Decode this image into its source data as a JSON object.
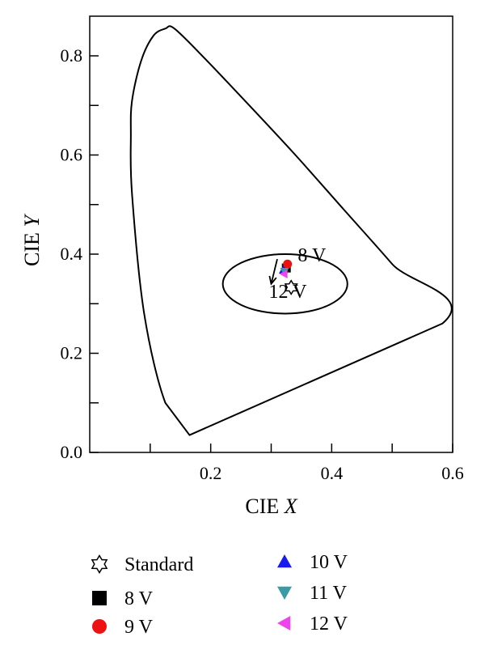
{
  "chart_data": {
    "type": "scatter",
    "title": "",
    "xlabel": "CIE X",
    "ylabel": "CIE Y",
    "xlim": [
      0.0,
      0.6
    ],
    "ylim": [
      0.0,
      0.88
    ],
    "x_ticks": [
      {
        "value": 0.2,
        "label": "0.2"
      },
      {
        "value": 0.4,
        "label": "0.4"
      },
      {
        "value": 0.6,
        "label": "0.6"
      }
    ],
    "y_ticks": [
      {
        "value": 0.0,
        "label": "0.0"
      },
      {
        "value": 0.2,
        "label": "0.2"
      },
      {
        "value": 0.4,
        "label": "0.4"
      },
      {
        "value": 0.6,
        "label": "0.6"
      },
      {
        "value": 0.8,
        "label": "0.8"
      }
    ],
    "x_minor_ticks": [
      0.1,
      0.3,
      0.5
    ],
    "y_minor_ticks": [
      0.1,
      0.3,
      0.5,
      0.7
    ],
    "grid": false,
    "legend_position": "bottom",
    "gamut_boundary": [
      [
        0.165,
        0.035
      ],
      [
        0.125,
        0.1
      ],
      [
        0.09,
        0.28
      ],
      [
        0.07,
        0.52
      ],
      [
        0.068,
        0.64
      ],
      [
        0.07,
        0.71
      ],
      [
        0.085,
        0.79
      ],
      [
        0.105,
        0.84
      ],
      [
        0.125,
        0.855
      ],
      [
        0.14,
        0.855
      ],
      [
        0.19,
        0.795
      ],
      [
        0.26,
        0.705
      ],
      [
        0.34,
        0.6
      ],
      [
        0.42,
        0.49
      ],
      [
        0.5,
        0.38
      ],
      [
        0.583,
        0.26
      ],
      [
        0.165,
        0.035
      ]
    ],
    "ellipse": {
      "center": [
        0.323,
        0.34
      ],
      "semi_axis_x": 0.103,
      "semi_axis_y": 0.06
    },
    "series": [
      {
        "name": "Standard",
        "marker": "star",
        "color": "#000000",
        "fill": "#ffffff",
        "x": [
          0.333
        ],
        "y": [
          0.333
        ]
      },
      {
        "name": "8 V",
        "marker": "square",
        "color": "#000000",
        "x": [
          0.325
        ],
        "y": [
          0.372
        ]
      },
      {
        "name": "9 V",
        "marker": "circle",
        "color": "#ee1111",
        "x": [
          0.327
        ],
        "y": [
          0.38
        ]
      },
      {
        "name": "10 V",
        "marker": "triangle-up",
        "color": "#1a1aee",
        "x": [
          0.32
        ],
        "y": [
          0.368
        ]
      },
      {
        "name": "11 V",
        "marker": "triangle-down",
        "color": "#3a9aa6",
        "x": [
          0.322
        ],
        "y": [
          0.365
        ]
      },
      {
        "name": "12 V",
        "marker": "triangle-left",
        "color": "#ee44ee",
        "x": [
          0.321
        ],
        "y": [
          0.36
        ]
      }
    ],
    "annotations": [
      {
        "text": "8 V",
        "x": 0.344,
        "y": 0.385
      },
      {
        "text": "12 V",
        "x": 0.296,
        "y": 0.312
      }
    ],
    "arrow": {
      "from": [
        0.31,
        0.39
      ],
      "to": [
        0.3,
        0.34
      ]
    }
  }
}
